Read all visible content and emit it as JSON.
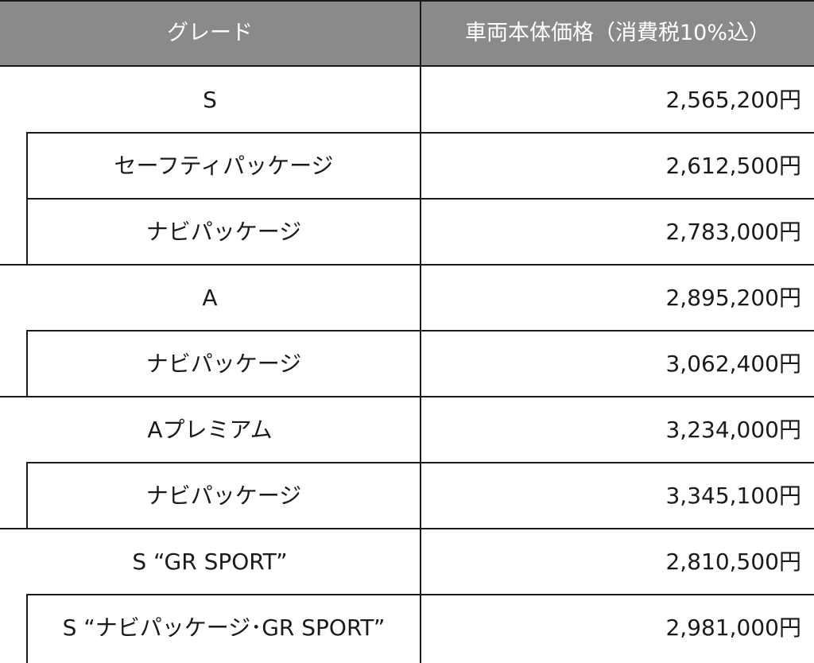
{
  "header": {
    "grade": "グレード",
    "price": "車両本体価格（消費税10%込）"
  },
  "rows": [
    {
      "grade": "S",
      "price": "2,565,200円",
      "sub": false
    },
    {
      "grade": "セーフティパッケージ",
      "price": "2,612,500円",
      "sub": true
    },
    {
      "grade": "ナビパッケージ",
      "price": "2,783,000円",
      "sub": true
    },
    {
      "grade": "A",
      "price": "2,895,200円",
      "sub": false
    },
    {
      "grade": "ナビパッケージ",
      "price": "3,062,400円",
      "sub": true
    },
    {
      "grade": "Aプレミアム",
      "price": "3,234,000円",
      "sub": false
    },
    {
      "grade": "ナビパッケージ",
      "price": "3,345,100円",
      "sub": true
    },
    {
      "grade": "S “GR SPORT”",
      "price": "2,810,500円",
      "sub": false
    },
    {
      "grade": "S “ナビパッケージ･GR SPORT”",
      "price": "2,981,000円",
      "sub": true
    }
  ],
  "colors": {
    "header_bg": "#8a8a8a",
    "header_text": "#ffffff",
    "border": "#1a1a1a"
  }
}
